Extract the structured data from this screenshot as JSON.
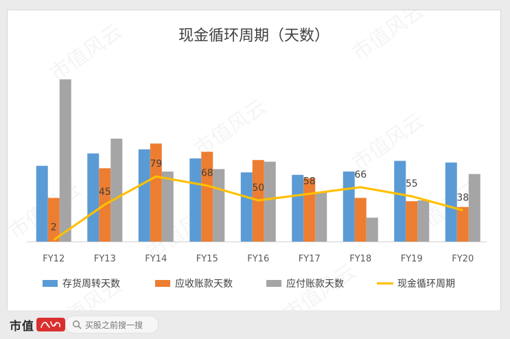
{
  "chart_data": {
    "type": "bar",
    "title": "现金循环周期（天数）",
    "categories": [
      "FY12",
      "FY13",
      "FY14",
      "FY15",
      "FY16",
      "FY17",
      "FY18",
      "FY19",
      "FY20"
    ],
    "series": [
      {
        "name": "存货周转天数",
        "kind": "bar",
        "color": "#5b9bd5",
        "values": [
          92,
          107,
          112,
          101,
          84,
          81,
          85,
          98,
          96
        ]
      },
      {
        "name": "应收账款天数",
        "kind": "bar",
        "color": "#ed7d31",
        "values": [
          53,
          89,
          119,
          109,
          99,
          77,
          53,
          49,
          42
        ]
      },
      {
        "name": "应付账款天数",
        "kind": "bar",
        "color": "#a5a5a5",
        "values": [
          197,
          125,
          85,
          88,
          97,
          60,
          29,
          50,
          82
        ]
      },
      {
        "name": "现金循环周期",
        "kind": "line",
        "color": "#ffc000",
        "values": [
          2,
          45,
          79,
          68,
          50,
          58,
          66,
          55,
          38
        ]
      }
    ],
    "line_labels": [
      "2",
      "45",
      "79",
      "68",
      "50",
      "58",
      "66",
      "55",
      "38"
    ],
    "legend_position": "bottom",
    "grid": false
  },
  "watermark": "市值风云",
  "footer": {
    "logo_text": "市值",
    "logo_badge_text": "风云",
    "search_placeholder": "买股之前搜一搜"
  }
}
